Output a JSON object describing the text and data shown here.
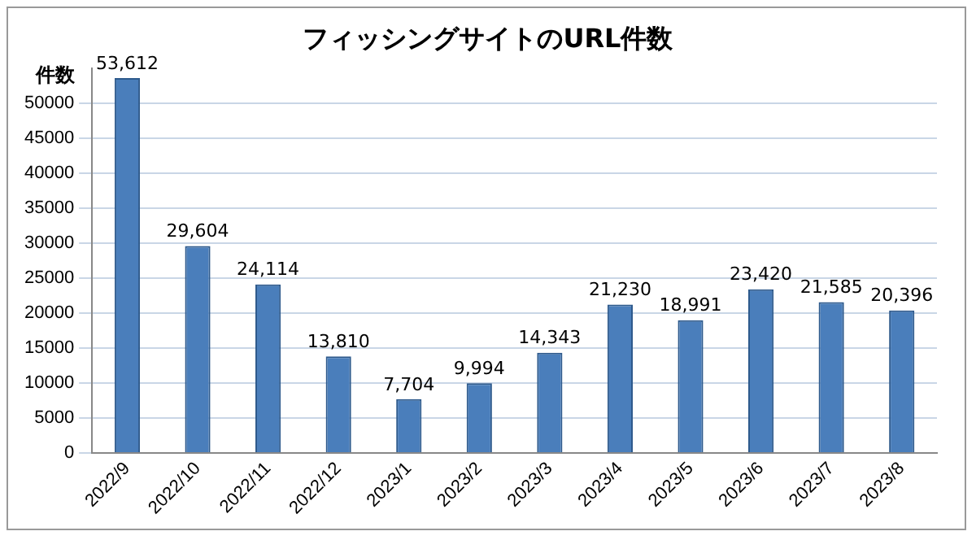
{
  "chart_data": {
    "type": "bar",
    "title": "フィッシングサイトのURL件数",
    "ylabel": "件数",
    "categories": [
      "2022/9",
      "2022/10",
      "2022/11",
      "2022/12",
      "2023/1",
      "2023/2",
      "2023/3",
      "2023/4",
      "2023/5",
      "2023/6",
      "2023/7",
      "2023/8"
    ],
    "values": [
      53612,
      29604,
      24114,
      13810,
      7704,
      9994,
      14343,
      21230,
      18991,
      23420,
      21585,
      20396
    ],
    "value_labels": [
      "53,612",
      "29,604",
      "24,114",
      "13,810",
      "7,704",
      "9,994",
      "14,343",
      "21,230",
      "18,991",
      "23,420",
      "21,585",
      "20,396"
    ],
    "color": "#4a7ebb",
    "ylim": [
      0,
      55000
    ],
    "yticks": [
      0,
      5000,
      10000,
      15000,
      20000,
      25000,
      30000,
      35000,
      40000,
      45000,
      50000
    ],
    "grid": "y"
  }
}
